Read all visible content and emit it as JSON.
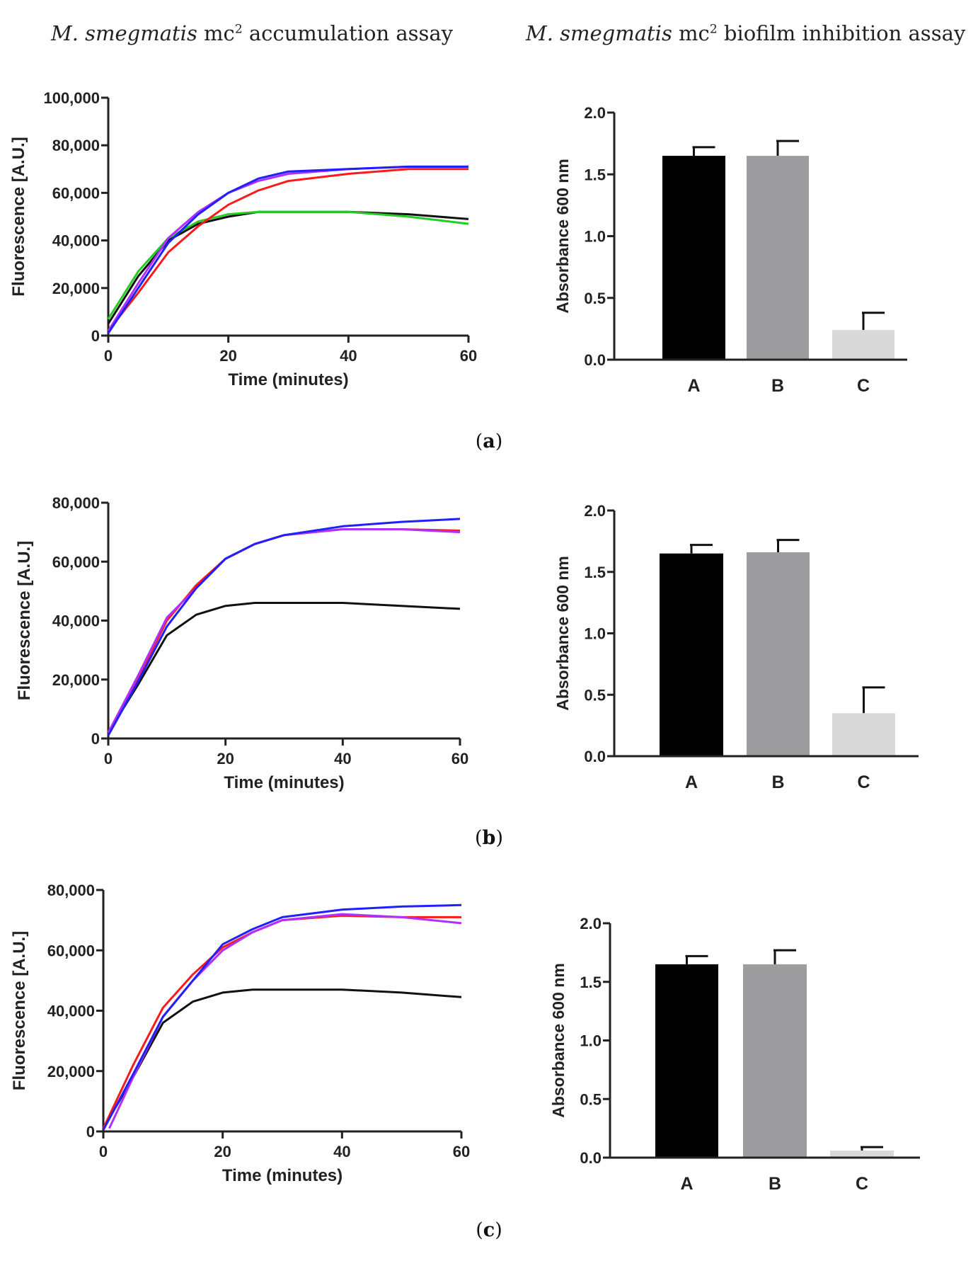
{
  "headers": {
    "left": {
      "italic": "M. smegmatis",
      "rest": " mc",
      "sup": "2",
      "tail": " accumulation assay"
    },
    "right": {
      "italic": "M. smegmatis",
      "rest": " mc",
      "sup": "2",
      "tail": " biofilm inhibition assay"
    }
  },
  "panels": [
    {
      "label_open": "(",
      "label_letter": "a",
      "label_close": ")"
    },
    {
      "label_open": "(",
      "label_letter": "b",
      "label_close": ")"
    },
    {
      "label_open": "(",
      "label_letter": "c",
      "label_close": ")"
    }
  ],
  "colors": {
    "black": "#111111",
    "red": "#ff1a1a",
    "blue": "#1f1fff",
    "purple": "#b030ff",
    "green": "#22cc22",
    "barA": "#000000",
    "barB": "#9d9d9f",
    "barC": "#d9d9d9"
  },
  "chart_data": [
    {
      "type": "line",
      "panel": "a",
      "xlabel": "Time (minutes)",
      "ylabel": "Fluorescence [A.U.]",
      "xlim": [
        0,
        60
      ],
      "ylim": [
        0,
        100000
      ],
      "xticks": [
        0,
        20,
        40,
        60
      ],
      "xtick_labels": [
        "0",
        "20",
        "40",
        "60"
      ],
      "yticks": [
        0,
        20000,
        40000,
        60000,
        80000,
        100000
      ],
      "ytick_labels": [
        "0",
        "20,000",
        "40,000",
        "60,000",
        "80,000",
        "100,000"
      ],
      "series": [
        {
          "name": "black",
          "x": [
            0,
            5,
            10,
            15,
            20,
            25,
            30,
            40,
            50,
            60
          ],
          "y": [
            5000,
            25000,
            40000,
            47000,
            50000,
            52000,
            52000,
            52000,
            51000,
            49000
          ]
        },
        {
          "name": "green",
          "x": [
            0,
            5,
            10,
            15,
            20,
            25,
            30,
            40,
            50,
            60
          ],
          "y": [
            7000,
            27000,
            41000,
            48000,
            51000,
            52000,
            52000,
            52000,
            50000,
            47000
          ]
        },
        {
          "name": "red",
          "x": [
            0,
            5,
            10,
            15,
            20,
            25,
            30,
            40,
            50,
            60
          ],
          "y": [
            2000,
            18000,
            35000,
            46000,
            55000,
            61000,
            65000,
            68000,
            70000,
            70000
          ]
        },
        {
          "name": "purple",
          "x": [
            0,
            5,
            10,
            15,
            20,
            25,
            30,
            40,
            50,
            60
          ],
          "y": [
            2000,
            22000,
            41000,
            52000,
            60000,
            65000,
            68000,
            70000,
            71000,
            71000
          ]
        },
        {
          "name": "blue",
          "x": [
            0,
            5,
            10,
            15,
            20,
            25,
            30,
            40,
            50,
            60
          ],
          "y": [
            1000,
            20000,
            39000,
            51000,
            60000,
            66000,
            69000,
            70000,
            71000,
            71000
          ]
        }
      ]
    },
    {
      "type": "bar",
      "panel": "a",
      "ylabel": "Absorbance 600 nm",
      "ylim": [
        0,
        2.0
      ],
      "yticks": [
        0,
        0.5,
        1.0,
        1.5,
        2.0
      ],
      "ytick_labels": [
        "0.0",
        "0.5",
        "1.0",
        "1.5",
        "2.0"
      ],
      "categories": [
        "A",
        "B",
        "C"
      ],
      "values": [
        1.65,
        1.65,
        0.24
      ],
      "errors": [
        0.07,
        0.12,
        0.14
      ]
    },
    {
      "type": "line",
      "panel": "b",
      "xlabel": "Time (minutes)",
      "ylabel": "Fluorescence [A.U.]",
      "xlim": [
        0,
        60
      ],
      "ylim": [
        0,
        80000
      ],
      "xticks": [
        0,
        20,
        40,
        60
      ],
      "xtick_labels": [
        "0",
        "20",
        "40",
        "60"
      ],
      "yticks": [
        0,
        20000,
        40000,
        60000,
        80000
      ],
      "ytick_labels": [
        "0",
        "20,000",
        "40,000",
        "60,000",
        "80,000"
      ],
      "series": [
        {
          "name": "black",
          "x": [
            0,
            5,
            10,
            15,
            20,
            25,
            30,
            40,
            50,
            60
          ],
          "y": [
            2000,
            18000,
            35000,
            42000,
            45000,
            46000,
            46000,
            46000,
            45000,
            44000
          ]
        },
        {
          "name": "red",
          "x": [
            0,
            5,
            10,
            15,
            20,
            25,
            30,
            40,
            50,
            60
          ],
          "y": [
            2000,
            20000,
            40000,
            52000,
            61000,
            66000,
            69000,
            71000,
            71000,
            70500
          ]
        },
        {
          "name": "purple",
          "x": [
            0,
            5,
            10,
            15,
            20,
            25,
            30,
            40,
            50,
            60
          ],
          "y": [
            2000,
            21000,
            41000,
            51000,
            61000,
            66000,
            69000,
            71000,
            71000,
            70000
          ]
        },
        {
          "name": "blue",
          "x": [
            0,
            5,
            10,
            15,
            20,
            25,
            30,
            40,
            50,
            60
          ],
          "y": [
            1000,
            19000,
            38000,
            51000,
            61000,
            66000,
            69000,
            72000,
            73500,
            74500
          ]
        }
      ]
    },
    {
      "type": "bar",
      "panel": "b",
      "ylabel": "Absorbance 600 nm",
      "ylim": [
        0,
        2.0
      ],
      "yticks": [
        0,
        0.5,
        1.0,
        1.5,
        2.0
      ],
      "ytick_labels": [
        "0.0",
        "0.5",
        "1.0",
        "1.5",
        "2.0"
      ],
      "categories": [
        "A",
        "B",
        "C"
      ],
      "values": [
        1.65,
        1.66,
        0.35
      ],
      "errors": [
        0.07,
        0.1,
        0.21
      ]
    },
    {
      "type": "line",
      "panel": "c",
      "xlabel": "Time (minutes)",
      "ylabel": "Fluorescence [A.U.]",
      "xlim": [
        0,
        60
      ],
      "ylim": [
        0,
        80000
      ],
      "xticks": [
        0,
        20,
        40,
        60
      ],
      "xtick_labels": [
        "0",
        "20",
        "40",
        "60"
      ],
      "yticks": [
        0,
        20000,
        40000,
        60000,
        80000
      ],
      "ytick_labels": [
        "0",
        "20,000",
        "40,000",
        "60,000",
        "80,000"
      ],
      "series": [
        {
          "name": "black",
          "x": [
            0,
            5,
            10,
            15,
            20,
            25,
            30,
            40,
            50,
            60
          ],
          "y": [
            1000,
            18000,
            36000,
            43000,
            46000,
            47000,
            47000,
            47000,
            46000,
            44500
          ]
        },
        {
          "name": "red",
          "x": [
            0,
            5,
            10,
            15,
            20,
            25,
            30,
            40,
            50,
            60
          ],
          "y": [
            1000,
            22000,
            41000,
            52000,
            61000,
            66000,
            70000,
            71500,
            71000,
            71000
          ]
        },
        {
          "name": "purple",
          "x": [
            1,
            5,
            10,
            15,
            20,
            25,
            30,
            40,
            50,
            60
          ],
          "y": [
            1000,
            18000,
            38000,
            50000,
            60000,
            66000,
            70000,
            72000,
            71000,
            69000
          ]
        },
        {
          "name": "blue",
          "x": [
            0,
            5,
            10,
            15,
            20,
            25,
            30,
            40,
            50,
            60
          ],
          "y": [
            500,
            19000,
            38000,
            50000,
            62000,
            67000,
            71000,
            73500,
            74500,
            75000
          ]
        }
      ]
    },
    {
      "type": "bar",
      "panel": "c",
      "ylabel": "Absorbance 600 nm",
      "ylim": [
        0,
        2.0
      ],
      "yticks": [
        0,
        0.5,
        1.0,
        1.5,
        2.0
      ],
      "ytick_labels": [
        "0.0",
        "0.5",
        "1.0",
        "1.5",
        "2.0"
      ],
      "categories": [
        "A",
        "B",
        "C"
      ],
      "values": [
        1.65,
        1.65,
        0.06
      ],
      "errors": [
        0.07,
        0.12,
        0.03
      ]
    }
  ]
}
